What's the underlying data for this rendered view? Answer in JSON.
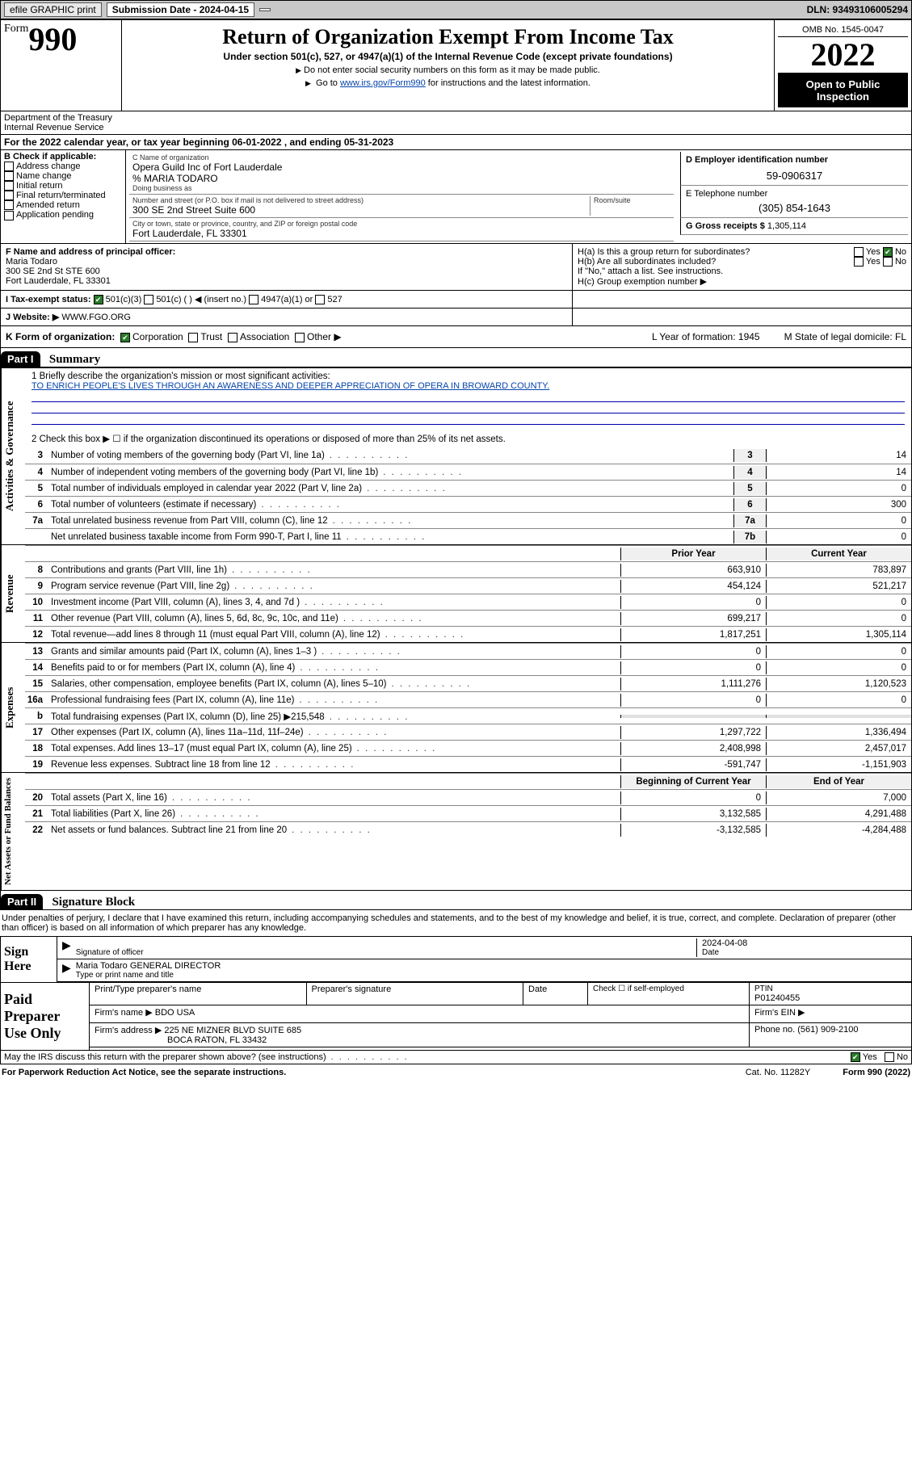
{
  "topbar": {
    "efile": "efile GRAPHIC print",
    "sub_label": "Submission Date - 2024-04-15",
    "dln": "DLN: 93493106005294"
  },
  "header": {
    "form_word": "Form",
    "form_num": "990",
    "title": "Return of Organization Exempt From Income Tax",
    "sub1": "Under section 501(c), 527, or 4947(a)(1) of the Internal Revenue Code (except private foundations)",
    "sub2": "Do not enter social security numbers on this form as it may be made public.",
    "sub3_pre": "Go to ",
    "sub3_link": "www.irs.gov/Form990",
    "sub3_post": " for instructions and the latest information.",
    "dept": "Department of the Treasury\nInternal Revenue Service",
    "omb": "OMB No. 1545-0047",
    "year": "2022",
    "open": "Open to Public Inspection"
  },
  "lineA": "For the 2022 calendar year, or tax year beginning 06-01-2022     , and ending 05-31-2023",
  "boxB": {
    "hdr": "B Check if applicable:",
    "items": [
      "Address change",
      "Name change",
      "Initial return",
      "Final return/terminated",
      "Amended return",
      "Application pending"
    ]
  },
  "boxC": {
    "name_lbl": "C Name of organization",
    "name": "Opera Guild Inc of Fort Lauderdale",
    "care": "% MARIA TODARO",
    "dba_lbl": "Doing business as",
    "street_lbl": "Number and street (or P.O. box if mail is not delivered to street address)",
    "room_lbl": "Room/suite",
    "street": "300 SE 2nd Street Suite 600",
    "city_lbl": "City or town, state or province, country, and ZIP or foreign postal code",
    "city": "Fort Lauderdale, FL  33301"
  },
  "boxD": {
    "lbl": "D Employer identification number",
    "val": "59-0906317"
  },
  "boxE": {
    "lbl": "E Telephone number",
    "val": "(305) 854-1643"
  },
  "boxG": {
    "lbl": "G Gross receipts $",
    "val": "1,305,114"
  },
  "boxF": {
    "lbl": "F Name and address of principal officer:",
    "line1": "Maria Todaro",
    "line2": "300 SE 2nd St STE 600",
    "line3": "Fort Lauderdale, FL  33301"
  },
  "boxH": {
    "a": "H(a)  Is this a group return for subordinates?",
    "a_ans": "No",
    "b": "H(b)  Are all subordinates included?",
    "b_note": "If \"No,\" attach a list. See instructions.",
    "c": "H(c)  Group exemption number ▶"
  },
  "lineI": {
    "lbl": "I    Tax-exempt status:",
    "opts": [
      "501(c)(3)",
      "501(c) (  ) ◀ (insert no.)",
      "4947(a)(1) or",
      "527"
    ]
  },
  "lineJ": {
    "lbl": "J    Website: ▶",
    "val": "WWW.FGO.ORG"
  },
  "lineK": {
    "lbl": "K Form of organization:",
    "opts": [
      "Corporation",
      "Trust",
      "Association",
      "Other ▶"
    ],
    "L": "L Year of formation: 1945",
    "M": "M State of legal domicile: FL"
  },
  "part1": {
    "hdr": "Part I",
    "title": "Summary",
    "brief_lbl": "1   Briefly describe the organization's mission or most significant activities:",
    "mission": "TO ENRICH PEOPLE'S LIVES THROUGH AN AWARENESS AND DEEPER APPRECIATION OF OPERA IN BROWARD COUNTY.",
    "line2": "2   Check this box ▶ ☐  if the organization discontinued its operations or disposed of more than 25% of its net assets."
  },
  "gov_section": {
    "label": "Activities & Governance",
    "rows": [
      {
        "n": "3",
        "d": "Number of voting members of the governing body (Part VI, line 1a)",
        "box": "3",
        "v": "14"
      },
      {
        "n": "4",
        "d": "Number of independent voting members of the governing body (Part VI, line 1b)",
        "box": "4",
        "v": "14"
      },
      {
        "n": "5",
        "d": "Total number of individuals employed in calendar year 2022 (Part V, line 2a)",
        "box": "5",
        "v": "0"
      },
      {
        "n": "6",
        "d": "Total number of volunteers (estimate if necessary)",
        "box": "6",
        "v": "300"
      },
      {
        "n": "7a",
        "d": "Total unrelated business revenue from Part VIII, column (C), line 12",
        "box": "7a",
        "v": "0"
      },
      {
        "n": "",
        "d": "Net unrelated business taxable income from Form 990-T, Part I, line 11",
        "box": "7b",
        "v": "0"
      }
    ]
  },
  "rev_section": {
    "label": "Revenue",
    "hdr1": "Prior Year",
    "hdr2": "Current Year",
    "rows": [
      {
        "n": "8",
        "d": "Contributions and grants (Part VIII, line 1h)",
        "c1": "663,910",
        "c2": "783,897"
      },
      {
        "n": "9",
        "d": "Program service revenue (Part VIII, line 2g)",
        "c1": "454,124",
        "c2": "521,217"
      },
      {
        "n": "10",
        "d": "Investment income (Part VIII, column (A), lines 3, 4, and 7d )",
        "c1": "0",
        "c2": "0"
      },
      {
        "n": "11",
        "d": "Other revenue (Part VIII, column (A), lines 5, 6d, 8c, 9c, 10c, and 11e)",
        "c1": "699,217",
        "c2": "0"
      },
      {
        "n": "12",
        "d": "Total revenue—add lines 8 through 11 (must equal Part VIII, column (A), line 12)",
        "c1": "1,817,251",
        "c2": "1,305,114"
      }
    ]
  },
  "exp_section": {
    "label": "Expenses",
    "rows": [
      {
        "n": "13",
        "d": "Grants and similar amounts paid (Part IX, column (A), lines 1–3 )",
        "c1": "0",
        "c2": "0"
      },
      {
        "n": "14",
        "d": "Benefits paid to or for members (Part IX, column (A), line 4)",
        "c1": "0",
        "c2": "0"
      },
      {
        "n": "15",
        "d": "Salaries, other compensation, employee benefits (Part IX, column (A), lines 5–10)",
        "c1": "1,111,276",
        "c2": "1,120,523"
      },
      {
        "n": "16a",
        "d": "Professional fundraising fees (Part IX, column (A), line 11e)",
        "c1": "0",
        "c2": "0"
      },
      {
        "n": "b",
        "d": "Total fundraising expenses (Part IX, column (D), line 25) ▶215,548",
        "c1": "",
        "c2": "",
        "shade": true
      },
      {
        "n": "17",
        "d": "Other expenses (Part IX, column (A), lines 11a–11d, 11f–24e)",
        "c1": "1,297,722",
        "c2": "1,336,494"
      },
      {
        "n": "18",
        "d": "Total expenses. Add lines 13–17 (must equal Part IX, column (A), line 25)",
        "c1": "2,408,998",
        "c2": "2,457,017"
      },
      {
        "n": "19",
        "d": "Revenue less expenses. Subtract line 18 from line 12",
        "c1": "-591,747",
        "c2": "-1,151,903"
      }
    ]
  },
  "net_section": {
    "label": "Net Assets or Fund Balances",
    "hdr1": "Beginning of Current Year",
    "hdr2": "End of Year",
    "rows": [
      {
        "n": "20",
        "d": "Total assets (Part X, line 16)",
        "c1": "0",
        "c2": "7,000"
      },
      {
        "n": "21",
        "d": "Total liabilities (Part X, line 26)",
        "c1": "3,132,585",
        "c2": "4,291,488"
      },
      {
        "n": "22",
        "d": "Net assets or fund balances. Subtract line 21 from line 20",
        "c1": "-3,132,585",
        "c2": "-4,284,488"
      }
    ]
  },
  "part2": {
    "hdr": "Part II",
    "title": "Signature Block",
    "penalties": "Under penalties of perjury, I declare that I have examined this return, including accompanying schedules and statements, and to the best of my knowledge and belief, it is true, correct, and complete. Declaration of preparer (other than officer) is based on all information of which preparer has any knowledge."
  },
  "sign": {
    "side": "Sign Here",
    "sig_lbl": "Signature of officer",
    "date_lbl": "Date",
    "date": "2024-04-08",
    "name": "Maria Todaro  GENERAL DIRECTOR",
    "name_lbl": "Type or print name and title"
  },
  "paid": {
    "side": "Paid Preparer Use Only",
    "h1": "Print/Type preparer's name",
    "h2": "Preparer's signature",
    "h3": "Date",
    "h4_a": "Check ☐ if self-employed",
    "h4_b": "PTIN",
    "ptin": "P01240455",
    "firm_lbl": "Firm's name    ▶",
    "firm": "BDO USA",
    "ein_lbl": "Firm's EIN ▶",
    "addr_lbl": "Firm's address ▶",
    "addr1": "225 NE MIZNER BLVD SUITE 685",
    "addr2": "BOCA RATON, FL  33432",
    "phone_lbl": "Phone no.",
    "phone": "(561) 909-2100"
  },
  "footer": {
    "discuss": "May the IRS discuss this return with the preparer shown above? (see instructions)",
    "yes": "Yes",
    "no": "No",
    "paperwork": "For Paperwork Reduction Act Notice, see the separate instructions.",
    "cat": "Cat. No. 11282Y",
    "form": "Form 990 (2022)"
  },
  "colors": {
    "link": "#0645ad",
    "check": "#2a7a2a"
  }
}
